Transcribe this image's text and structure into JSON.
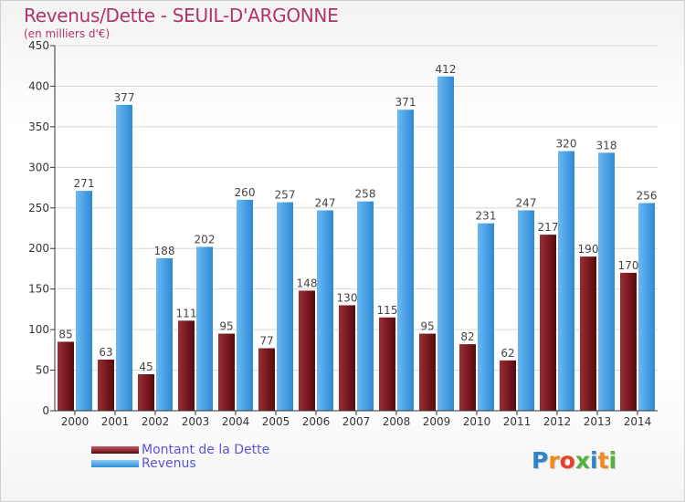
{
  "header": {
    "title": "Revenus/Dette - SEUIL-D'ARGONNE",
    "subtitle": "(en milliers d'€)"
  },
  "colors": {
    "title": "#b0336b",
    "dette_dark": "#5e0b0e",
    "dette_light": "#c25b62",
    "revenus_dark": "#2d8fd8",
    "revenus_light": "#8ccaf4",
    "legend_text": "#5a55d6"
  },
  "legend": {
    "items": [
      {
        "label": "Montant de la Dette",
        "icon": "dark-red-bar-swatch"
      },
      {
        "label": "Revenus",
        "icon": "blue-bar-swatch"
      }
    ]
  },
  "logo": {
    "letters": [
      "P",
      "r",
      "o",
      "x",
      "i",
      "t",
      "i"
    ],
    "colors": [
      "#2e83c9",
      "#f08a1c",
      "#e83f2b",
      "#55b33a",
      "#2e83c9",
      "#f08a1c",
      "#55b33a"
    ]
  },
  "chart_data": {
    "type": "bar",
    "title": "Revenus/Dette - SEUIL-D'ARGONNE",
    "subtitle": "(en milliers d'€)",
    "categories": [
      "2000",
      "2001",
      "2002",
      "2003",
      "2004",
      "2005",
      "2006",
      "2007",
      "2008",
      "2009",
      "2010",
      "2011",
      "2012",
      "2013",
      "2014"
    ],
    "series": [
      {
        "name": "Montant de la Dette",
        "values": [
          85,
          63,
          45,
          111,
          95,
          77,
          148,
          130,
          115,
          95,
          82,
          62,
          217,
          190,
          170
        ]
      },
      {
        "name": "Revenus",
        "values": [
          271,
          377,
          188,
          202,
          260,
          257,
          247,
          258,
          371,
          412,
          231,
          247,
          320,
          318,
          256
        ]
      }
    ],
    "ylim": [
      0,
      450
    ],
    "yticks": [
      0,
      50,
      100,
      150,
      200,
      250,
      300,
      350,
      400,
      450
    ],
    "grid": true,
    "legend": "bottom-left"
  }
}
